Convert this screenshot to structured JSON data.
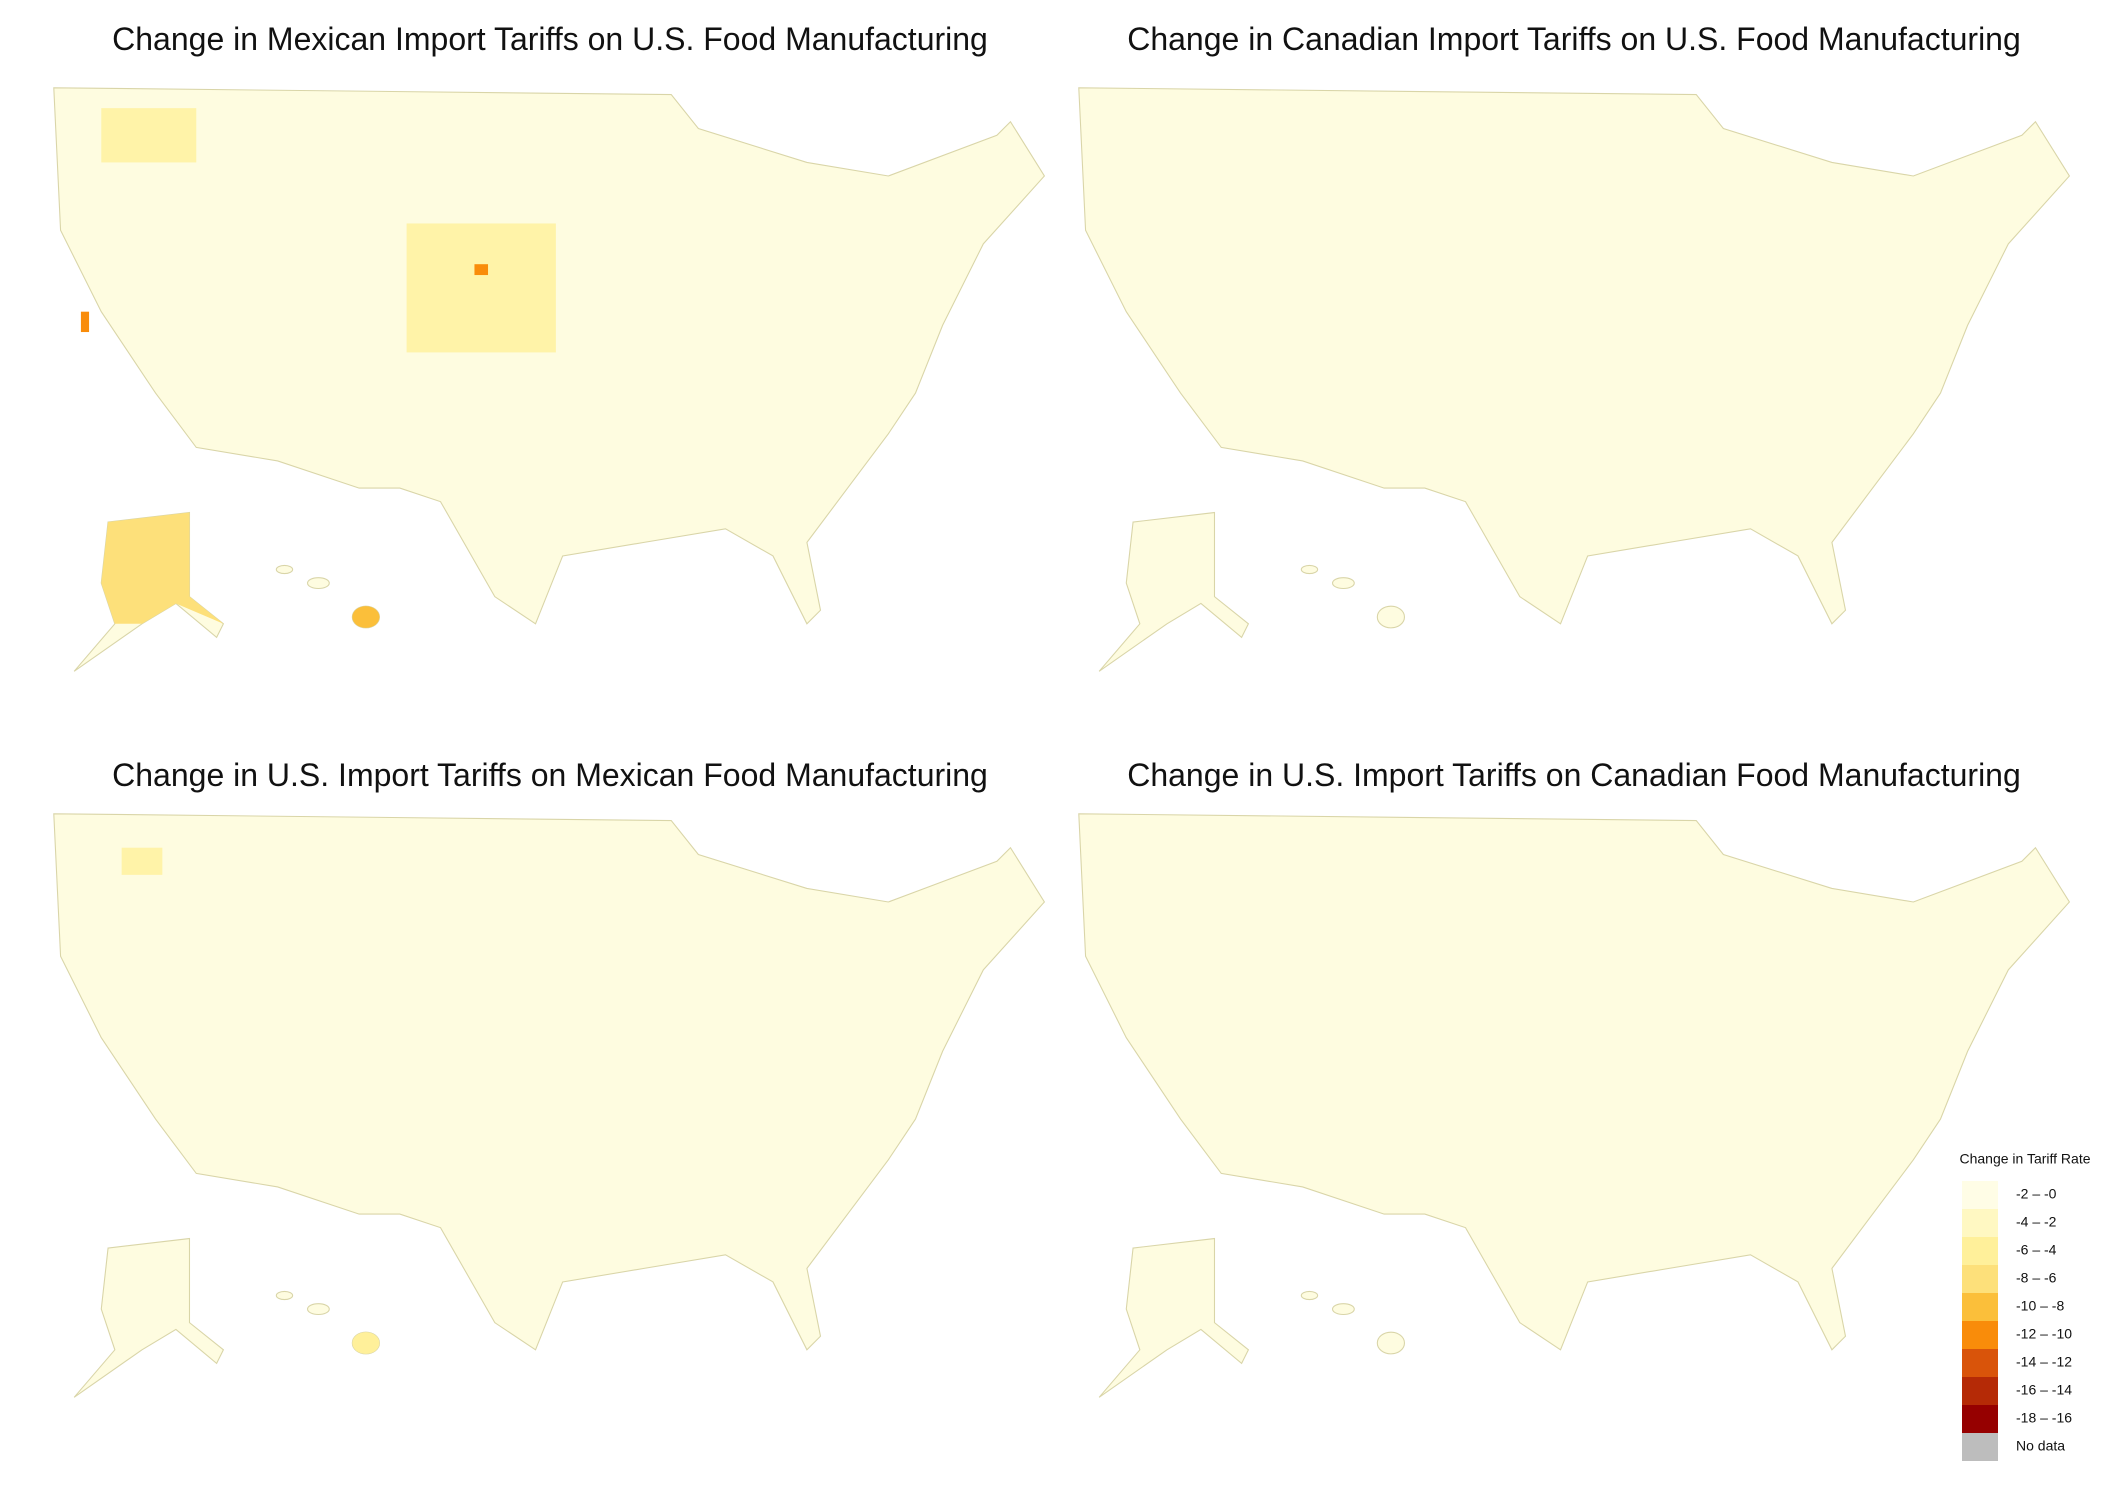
{
  "panels": [
    {
      "title": "Change in Mexican Import Tariffs on U.S. Food Manufacturing"
    },
    {
      "title": "Change in Canadian Import Tariffs on U.S. Food Manufacturing"
    },
    {
      "title": "Change in U.S. Import Tariffs on Mexican Food Manufacturing"
    },
    {
      "title": "Change in U.S. Import Tariffs on Canadian Food Manufacturing"
    }
  ],
  "legend": {
    "title": "Change in Tariff Rate",
    "items": [
      {
        "label": "-2 – -0",
        "color": "#fffde6"
      },
      {
        "label": "-4 – -2",
        "color": "#fff8c2"
      },
      {
        "label": "-6 – -4",
        "color": "#fff09a"
      },
      {
        "label": "-8 – -6",
        "color": "#fde07a"
      },
      {
        "label": "-10 – -8",
        "color": "#fbbf3a"
      },
      {
        "label": "-12 – -10",
        "color": "#f98c0a"
      },
      {
        "label": "-14 – -12",
        "color": "#d9540a"
      },
      {
        "label": "-16 – -14",
        "color": "#b52a06"
      },
      {
        "label": "-18 – -16",
        "color": "#960000"
      },
      {
        "label": "No data",
        "color": "#bdbdbd"
      }
    ]
  }
}
